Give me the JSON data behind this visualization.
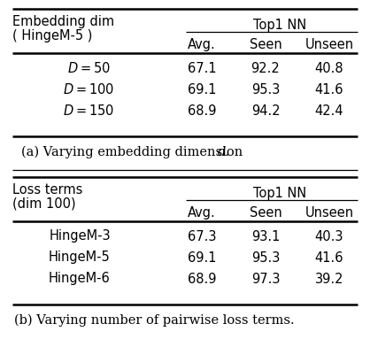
{
  "table_a": {
    "header_top": "Top1 NN",
    "header_left_line1": "Embedding dim",
    "header_left_line2": "( HingeM-5 )",
    "subheaders": [
      "Avg.",
      "Seen",
      "Unseen"
    ],
    "rows": [
      [
        "D = 50",
        "67.1",
        "92.2",
        "40.8"
      ],
      [
        "D = 100",
        "69.1",
        "95.3",
        "41.6"
      ],
      [
        "D = 150",
        "68.9",
        "94.2",
        "42.4"
      ]
    ],
    "caption_regular": "(a) Varying embedding dimension ",
    "caption_italic": "d",
    "caption_end": "."
  },
  "table_b": {
    "header_top": "Top1 NN",
    "header_left_line1": "Loss terms",
    "header_left_line2": "(dim 100)",
    "subheaders": [
      "Avg.",
      "Seen",
      "Unseen"
    ],
    "rows": [
      [
        "HingeM-3",
        "67.3",
        "93.1",
        "40.3"
      ],
      [
        "HingeM-5",
        "69.1",
        "95.3",
        "41.6"
      ],
      [
        "HingeM-6",
        "68.9",
        "97.3",
        "39.2"
      ]
    ],
    "caption": "(b) Varying number of pairwise loss terms."
  },
  "bg_color": "#ffffff",
  "text_color": "#000000",
  "font_size": 10.5,
  "caption_font_size": 10.5
}
